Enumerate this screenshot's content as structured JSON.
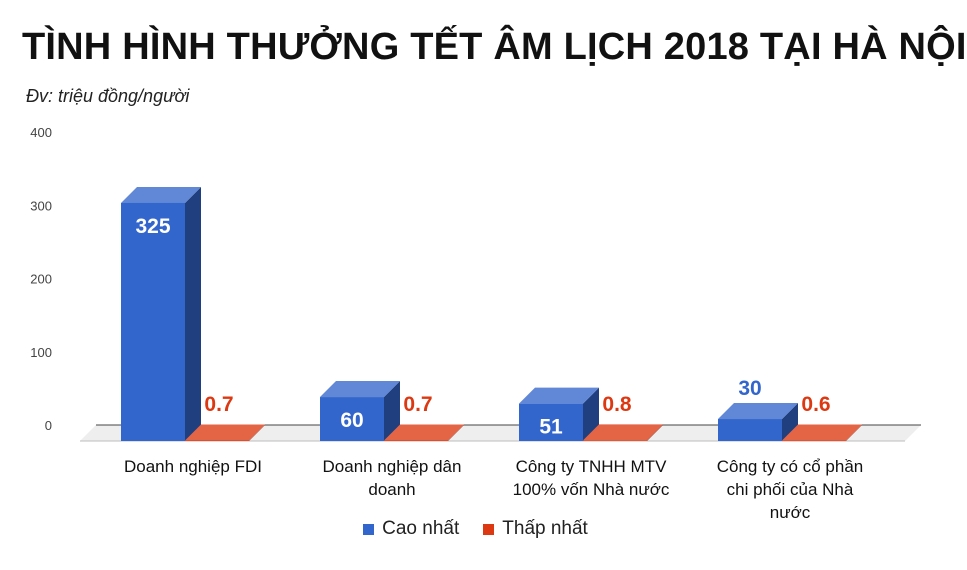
{
  "title": "TÌNH HÌNH THƯỞNG TẾT ÂM LỊCH 2018 TẠI HÀ NỘI",
  "subtitle": "Đv: triệu đồng/người",
  "colors": {
    "series_high": "#3366cc",
    "series_low": "#dc3912",
    "label_high_inside": "#ffffff",
    "label_high_outside": "#3366cc",
    "label_low": "#dc3912"
  },
  "legend": [
    {
      "name": "Cao nhất",
      "color": "#3366cc"
    },
    {
      "name": "Thấp nhất",
      "color": "#dc3912"
    }
  ],
  "chart_data": {
    "type": "bar",
    "title": "TÌNH HÌNH THƯỞNG TẾT ÂM LỊCH 2018 TẠI HÀ NỘI",
    "subtitle": "Đv: triệu đồng/người",
    "categories": [
      [
        "Doanh nghiệp FDI"
      ],
      [
        "Doanh nghiệp dân",
        "doanh"
      ],
      [
        "Công ty TNHH MTV",
        "100% vốn Nhà nước"
      ],
      [
        "Công ty có cổ phần",
        "chi phối của Nhà",
        "nước"
      ]
    ],
    "series": [
      {
        "name": "Cao nhất",
        "values": [
          325,
          60,
          51,
          30
        ],
        "labels": [
          "325",
          "60",
          "51",
          "30"
        ]
      },
      {
        "name": "Thấp nhất",
        "values": [
          0.7,
          0.7,
          0.8,
          0.6
        ],
        "labels": [
          "0.7",
          "0.7",
          "0.8",
          "0.6"
        ]
      }
    ],
    "yticks": [
      "0",
      "100",
      "200",
      "300",
      "400"
    ],
    "ylim": [
      0,
      400
    ],
    "grid": false,
    "style": "3d",
    "legend_position": "bottom"
  }
}
